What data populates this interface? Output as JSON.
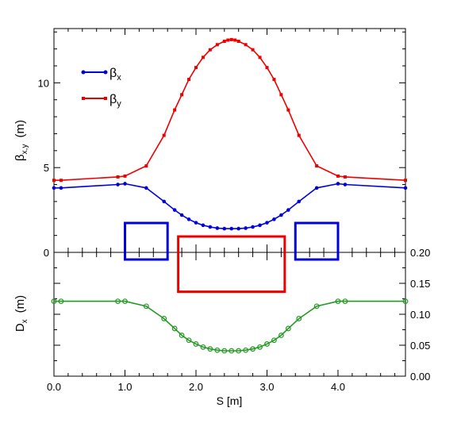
{
  "chart_data": [
    {
      "type": "line",
      "ylabel": "β",
      "ylabel_sub": "x,y",
      "ylabel_unit": "(m)",
      "xlim": [
        0,
        4.95
      ],
      "ylim": [
        0,
        13.2
      ],
      "yticks": [
        "0",
        "5",
        "10"
      ],
      "legend_position": "top-left",
      "series": [
        {
          "name": "β",
          "name_sub": "x",
          "color": "#0000dd",
          "marker": "circle",
          "x": [
            0.0,
            0.1,
            0.9,
            1.0,
            1.3,
            1.55,
            1.7,
            1.8,
            1.9,
            2.0,
            2.1,
            2.2,
            2.3,
            2.4,
            2.5,
            2.6,
            2.7,
            2.8,
            2.9,
            3.0,
            3.1,
            3.2,
            3.3,
            3.45,
            3.7,
            4.0,
            4.1,
            4.95
          ],
          "y": [
            3.8,
            3.8,
            4.0,
            4.05,
            3.8,
            3.0,
            2.5,
            2.2,
            1.95,
            1.75,
            1.6,
            1.5,
            1.43,
            1.4,
            1.4,
            1.4,
            1.43,
            1.5,
            1.6,
            1.75,
            1.95,
            2.2,
            2.5,
            3.0,
            3.8,
            4.05,
            4.0,
            3.8
          ]
        },
        {
          "name": "β",
          "name_sub": "y",
          "color": "#ee0000",
          "marker": "square",
          "x": [
            0.0,
            0.1,
            0.9,
            1.0,
            1.3,
            1.55,
            1.7,
            1.8,
            1.9,
            2.0,
            2.1,
            2.2,
            2.3,
            2.4,
            2.45,
            2.5,
            2.55,
            2.6,
            2.7,
            2.8,
            2.9,
            3.0,
            3.1,
            3.2,
            3.3,
            3.45,
            3.7,
            4.0,
            4.1,
            4.95
          ],
          "y": [
            4.25,
            4.25,
            4.45,
            4.5,
            5.1,
            6.9,
            8.4,
            9.3,
            10.2,
            10.9,
            11.5,
            11.95,
            12.25,
            12.45,
            12.52,
            12.55,
            12.52,
            12.45,
            12.25,
            11.95,
            11.5,
            10.9,
            10.2,
            9.3,
            8.4,
            6.9,
            5.1,
            4.5,
            4.45,
            4.25
          ]
        }
      ]
    },
    {
      "type": "line",
      "xlabel": "S [m]",
      "ylabel": "D",
      "ylabel_sub": "x",
      "ylabel_unit": "(m)",
      "xlim": [
        0,
        4.95
      ],
      "ylim": [
        0,
        0.2
      ],
      "xticks": [
        "0.0",
        "1.0",
        "2.0",
        "3.0",
        "4.0"
      ],
      "yticks_right": [
        "0.00",
        "0.05",
        "0.10",
        "0.15",
        "0.20"
      ],
      "series": [
        {
          "name": "D",
          "color": "#229922",
          "marker": "circle-open",
          "x": [
            0.0,
            0.1,
            0.9,
            1.0,
            1.3,
            1.55,
            1.7,
            1.8,
            1.9,
            2.0,
            2.1,
            2.2,
            2.3,
            2.4,
            2.5,
            2.6,
            2.7,
            2.8,
            2.9,
            3.0,
            3.1,
            3.2,
            3.3,
            3.45,
            3.7,
            4.0,
            4.1,
            4.95
          ],
          "y": [
            0.121,
            0.121,
            0.121,
            0.121,
            0.113,
            0.093,
            0.077,
            0.066,
            0.058,
            0.052,
            0.047,
            0.044,
            0.042,
            0.041,
            0.041,
            0.041,
            0.042,
            0.044,
            0.047,
            0.052,
            0.058,
            0.066,
            0.077,
            0.093,
            0.113,
            0.121,
            0.121,
            0.121
          ]
        }
      ]
    }
  ],
  "lattice": {
    "magnets": [
      {
        "kind": "quad",
        "s_start": 1.0,
        "s_end": 1.6,
        "color": "#0000dd",
        "height": 1.0
      },
      {
        "kind": "dipole",
        "s_start": 1.75,
        "s_end": 3.25,
        "color": "#ee0000",
        "height": -0.8
      },
      {
        "kind": "quad",
        "s_start": 3.4,
        "s_end": 4.0,
        "color": "#0000dd",
        "height": 1.0
      }
    ]
  }
}
